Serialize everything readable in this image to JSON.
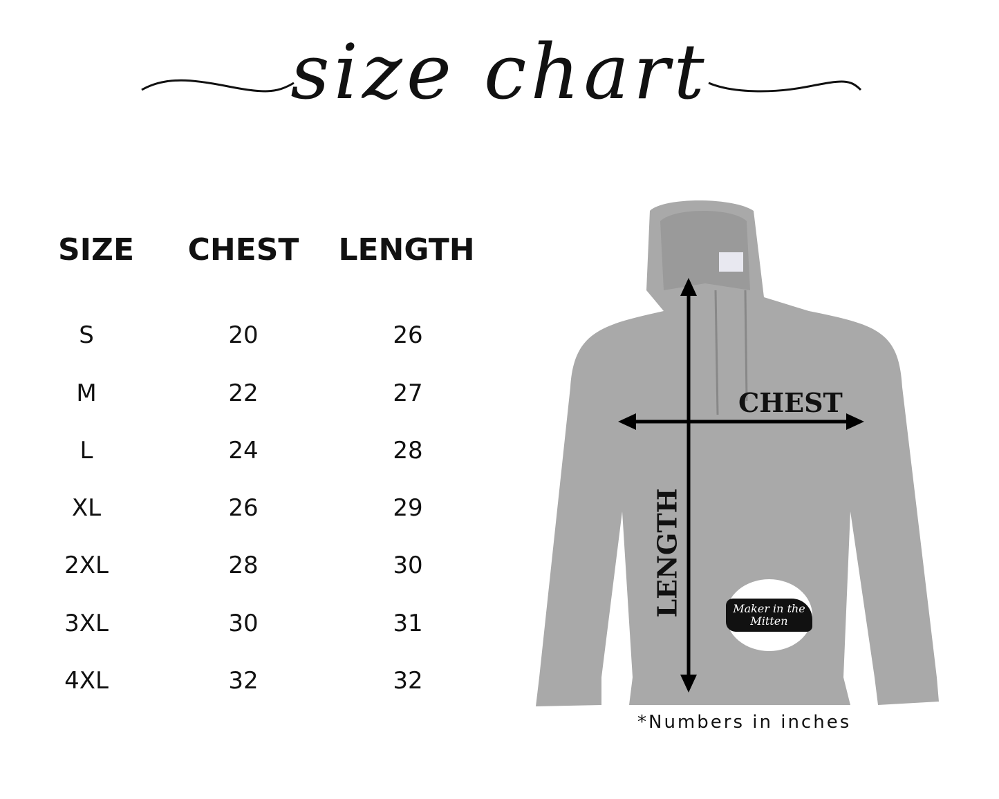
{
  "title": "size chart",
  "table": {
    "headers": [
      "SIZE",
      "CHEST",
      "LENGTH"
    ],
    "rows": [
      {
        "size": "S",
        "chest": "20",
        "length": "26"
      },
      {
        "size": "M",
        "chest": "22",
        "length": "27"
      },
      {
        "size": "L",
        "chest": "24",
        "length": "28"
      },
      {
        "size": "XL",
        "chest": "26",
        "length": "29"
      },
      {
        "size": "2XL",
        "chest": "28",
        "length": "30"
      },
      {
        "size": "3XL",
        "chest": "30",
        "length": "31"
      },
      {
        "size": "4XL",
        "chest": "32",
        "length": "32"
      }
    ]
  },
  "diagram": {
    "chest_label": "CHEST",
    "length_label": "LENGTH",
    "hoodie_color": "#a8a8a8",
    "logo_text": "Maker in the Mitten"
  },
  "note": "*Numbers in inches"
}
